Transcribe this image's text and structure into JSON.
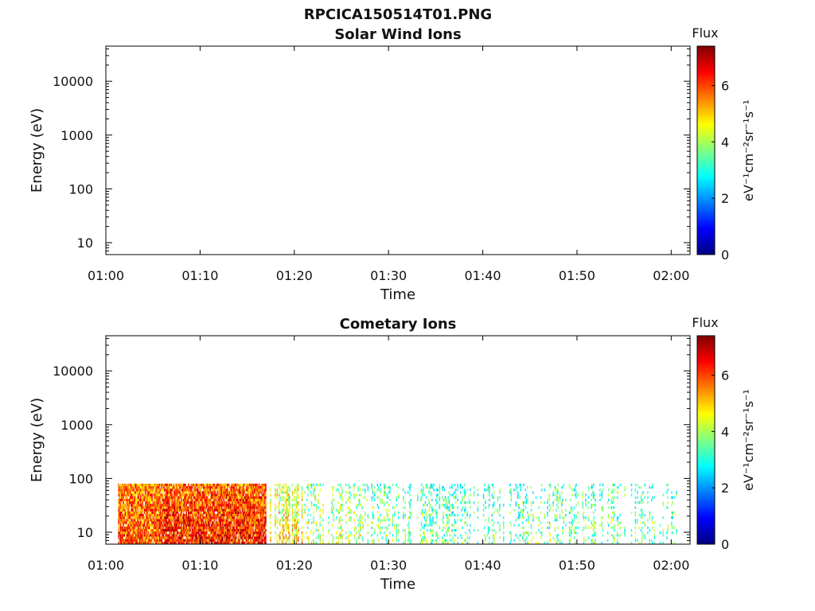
{
  "figure": {
    "filename_title": "RPCICA150514T01.PNG"
  },
  "colors": {
    "axis": "#000000",
    "colormap": [
      "#000080",
      "#0000ff",
      "#0080ff",
      "#00ffff",
      "#80ff80",
      "#ffff00",
      "#ff8000",
      "#ff0000",
      "#800000"
    ]
  },
  "chart_data": [
    {
      "type": "heatmap",
      "title": "Solar Wind Ions",
      "xlabel": "Time",
      "ylabel": "Energy (eV)",
      "x_ticks": [
        "01:00",
        "01:10",
        "01:20",
        "01:30",
        "01:40",
        "01:50",
        "02:00"
      ],
      "y_scale": "log",
      "y_ticks": [
        "10",
        "100",
        "1000",
        "10000"
      ],
      "ylim": [
        6,
        45000
      ],
      "xlim_minutes": [
        0,
        62
      ],
      "colorbar": {
        "label": "Flux",
        "unit": "eV⁻¹cm⁻²sr⁻¹s⁻¹",
        "ticks": [
          "0",
          "2",
          "4",
          "6"
        ],
        "range": [
          0,
          7.4
        ]
      },
      "data_present": false
    },
    {
      "type": "heatmap",
      "title": "Cometary Ions",
      "xlabel": "Time",
      "ylabel": "Energy (eV)",
      "x_ticks": [
        "01:00",
        "01:10",
        "01:20",
        "01:30",
        "01:40",
        "01:50",
        "02:00"
      ],
      "y_scale": "log",
      "y_ticks": [
        "10",
        "100",
        "1000",
        "10000"
      ],
      "ylim": [
        6,
        45000
      ],
      "xlim_minutes": [
        0,
        62
      ],
      "colorbar": {
        "label": "Flux",
        "unit": "eV⁻¹cm⁻²sr⁻¹s⁻¹",
        "ticks": [
          "0",
          "2",
          "4",
          "6"
        ],
        "range": [
          0,
          7.4
        ]
      },
      "data_present": true,
      "energy_range_eV": [
        6,
        80
      ],
      "time_range_minutes": [
        1.3,
        60.5
      ],
      "flux_segments": [
        {
          "t_start": 1.3,
          "t_end": 6.0,
          "flux": 6.0
        },
        {
          "t_start": 6.0,
          "t_end": 17.0,
          "flux": 6.3
        },
        {
          "t_start": 17.0,
          "t_end": 21.0,
          "flux": 4.8
        },
        {
          "t_start": 21.0,
          "t_end": 27.0,
          "flux": 4.2
        },
        {
          "t_start": 27.0,
          "t_end": 31.0,
          "flux": 3.8
        },
        {
          "t_start": 31.0,
          "t_end": 45.0,
          "flux": 3.6
        },
        {
          "t_start": 45.0,
          "t_end": 60.5,
          "flux": 3.7
        }
      ]
    }
  ]
}
